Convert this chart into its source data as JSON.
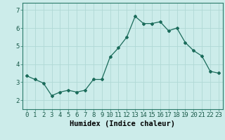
{
  "x": [
    0,
    1,
    2,
    3,
    4,
    5,
    6,
    7,
    8,
    9,
    10,
    11,
    12,
    13,
    14,
    15,
    16,
    17,
    18,
    19,
    20,
    21,
    22,
    23
  ],
  "y": [
    3.35,
    3.15,
    2.95,
    2.25,
    2.45,
    2.55,
    2.45,
    2.55,
    3.15,
    3.15,
    4.4,
    4.9,
    5.5,
    6.65,
    6.25,
    6.25,
    6.35,
    5.85,
    6.0,
    5.2,
    4.75,
    4.45,
    3.6,
    3.5
  ],
  "line_color": "#1a6b5a",
  "marker": "D",
  "marker_size": 2.0,
  "bg_color": "#ccecea",
  "grid_color": "#b0d8d5",
  "xlabel": "Humidex (Indice chaleur)",
  "xlabel_fontsize": 7.5,
  "tick_fontsize": 6.5,
  "ylim": [
    1.5,
    7.4
  ],
  "xlim": [
    -0.5,
    23.5
  ],
  "yticks": [
    2,
    3,
    4,
    5,
    6,
    7
  ],
  "xticks": [
    0,
    1,
    2,
    3,
    4,
    5,
    6,
    7,
    8,
    9,
    10,
    11,
    12,
    13,
    14,
    15,
    16,
    17,
    18,
    19,
    20,
    21,
    22,
    23
  ]
}
